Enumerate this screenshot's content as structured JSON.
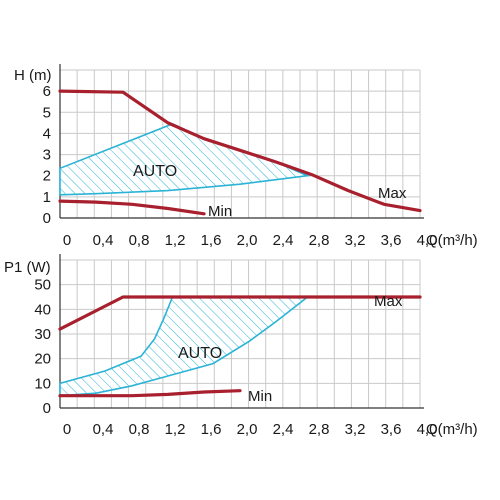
{
  "colors": {
    "curve": "#a8202e",
    "auto": "#2bb3d6",
    "grid": "#c9c9c9",
    "text": "#1a1a1a"
  },
  "chart_data": [
    {
      "type": "line",
      "ylabel": "H (m)",
      "xlabel": "Q(m³/h)",
      "xlim": [
        0,
        4.0
      ],
      "ylim": [
        0,
        7
      ],
      "x_ticks": [
        "0",
        "0,4",
        "0,8",
        "1,2",
        "1,6",
        "2,0",
        "2,4",
        "2,8",
        "3,2",
        "3,6",
        "4,0"
      ],
      "y_ticks": [
        "0",
        "1",
        "2",
        "3",
        "4",
        "5",
        "6"
      ],
      "grid": true,
      "series": [
        {
          "name": "Max",
          "points": [
            [
              0,
              6.0
            ],
            [
              0.7,
              5.95
            ],
            [
              1.2,
              4.5
            ],
            [
              1.6,
              3.75
            ],
            [
              2.0,
              3.2
            ],
            [
              2.4,
              2.65
            ],
            [
              2.8,
              2.05
            ],
            [
              3.2,
              1.3
            ],
            [
              3.6,
              0.65
            ],
            [
              4.0,
              0.35
            ]
          ]
        },
        {
          "name": "Min",
          "points": [
            [
              0,
              0.8
            ],
            [
              0.4,
              0.75
            ],
            [
              0.8,
              0.65
            ],
            [
              1.2,
              0.45
            ],
            [
              1.6,
              0.2
            ]
          ]
        }
      ],
      "regions": [
        {
          "name": "AUTO",
          "polygon": [
            [
              0,
              2.35
            ],
            [
              1.25,
              4.45
            ],
            [
              1.6,
              3.75
            ],
            [
              2.0,
              3.2
            ],
            [
              2.4,
              2.65
            ],
            [
              2.75,
              2.0
            ],
            [
              2.0,
              1.6
            ],
            [
              1.2,
              1.3
            ],
            [
              0.4,
              1.15
            ],
            [
              0,
              1.1
            ]
          ]
        }
      ]
    },
    {
      "type": "line",
      "ylabel": "P1 (W)",
      "xlabel": "Q(m³/h)",
      "xlim": [
        0,
        4.0
      ],
      "ylim": [
        0,
        60
      ],
      "x_ticks": [
        "0",
        "0,4",
        "0,8",
        "1,2",
        "1,6",
        "2,0",
        "2,4",
        "2,8",
        "3,2",
        "3,6",
        "4,0"
      ],
      "y_ticks": [
        "0",
        "10",
        "20",
        "30",
        "40",
        "50"
      ],
      "grid": true,
      "series": [
        {
          "name": "Max",
          "points": [
            [
              0,
              32
            ],
            [
              0.7,
              45
            ],
            [
              1.2,
              45
            ],
            [
              2.0,
              45
            ],
            [
              2.8,
              45
            ],
            [
              3.2,
              45
            ],
            [
              4.0,
              45
            ]
          ]
        },
        {
          "name": "Min",
          "points": [
            [
              0,
              5
            ],
            [
              0.4,
              5
            ],
            [
              0.8,
              5
            ],
            [
              1.2,
              5.5
            ],
            [
              1.6,
              6.5
            ],
            [
              2.0,
              7
            ]
          ]
        }
      ],
      "regions": [
        {
          "name": "AUTO",
          "polygon": [
            [
              0,
              10
            ],
            [
              0.5,
              15
            ],
            [
              0.9,
              21
            ],
            [
              1.05,
              28
            ],
            [
              1.15,
              36
            ],
            [
              1.25,
              45
            ],
            [
              2.75,
              45
            ],
            [
              2.4,
              35
            ],
            [
              2.1,
              27
            ],
            [
              1.7,
              18
            ],
            [
              1.3,
              14
            ],
            [
              0.8,
              9
            ],
            [
              0.4,
              6
            ],
            [
              0,
              5
            ]
          ]
        }
      ]
    }
  ]
}
